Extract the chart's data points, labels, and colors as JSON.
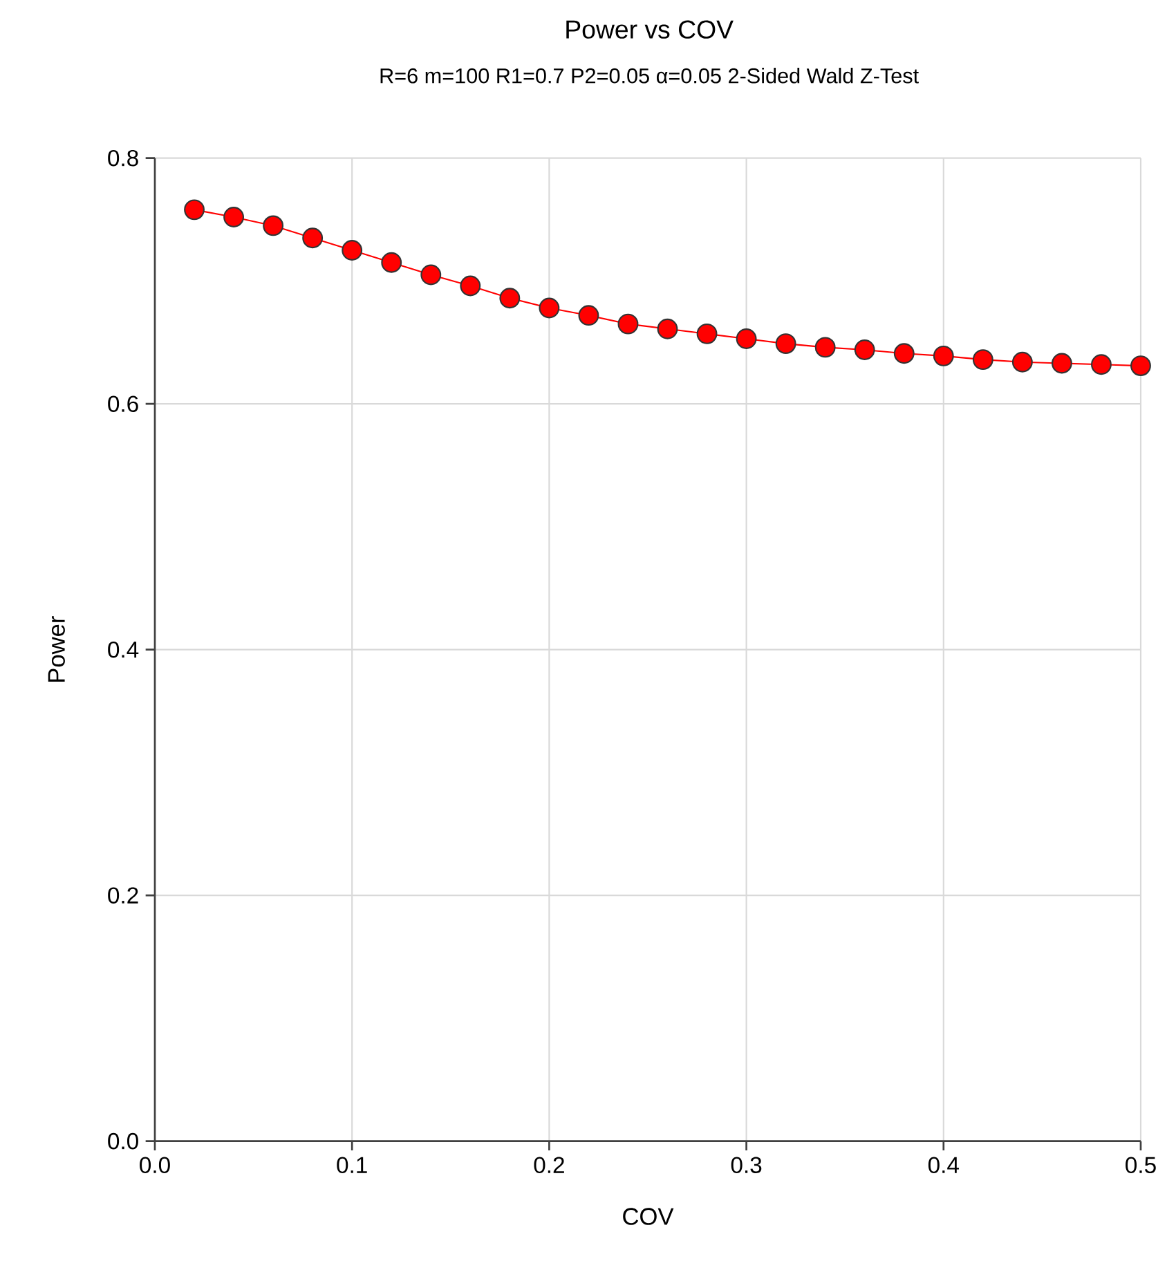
{
  "chart_data": {
    "type": "line",
    "title": "Power vs COV",
    "subtitle": "R=6 m=100 R1=0.7 P2=0.05 α=0.05 2-Sided Wald Z-Test",
    "xlabel": "COV",
    "ylabel": "Power",
    "x": [
      0.02,
      0.04,
      0.06,
      0.08,
      0.1,
      0.12,
      0.14,
      0.16,
      0.18,
      0.2,
      0.22,
      0.24,
      0.26,
      0.28,
      0.3,
      0.32,
      0.34,
      0.36,
      0.38,
      0.4,
      0.42,
      0.44,
      0.46,
      0.48,
      0.5
    ],
    "series": [
      {
        "color": "#ff0000",
        "values": [
          0.758,
          0.752,
          0.745,
          0.735,
          0.725,
          0.715,
          0.705,
          0.696,
          0.686,
          0.678,
          0.672,
          0.665,
          0.661,
          0.657,
          0.653,
          0.649,
          0.646,
          0.644,
          0.641,
          0.639,
          0.636,
          0.634,
          0.633,
          0.632,
          0.631
        ]
      }
    ],
    "xlim": [
      0,
      0.5
    ],
    "ylim": [
      0,
      0.8
    ],
    "xticks": [
      {
        "value": 0,
        "label": "0.0"
      },
      0.1,
      0.2,
      0.3,
      0.4,
      0.5
    ],
    "yticks": [
      {
        "value": 0,
        "label": "0.0"
      },
      0.2,
      0.4,
      0.6,
      0.8
    ],
    "grid": true,
    "marker": "circle",
    "line_style": "solid"
  }
}
